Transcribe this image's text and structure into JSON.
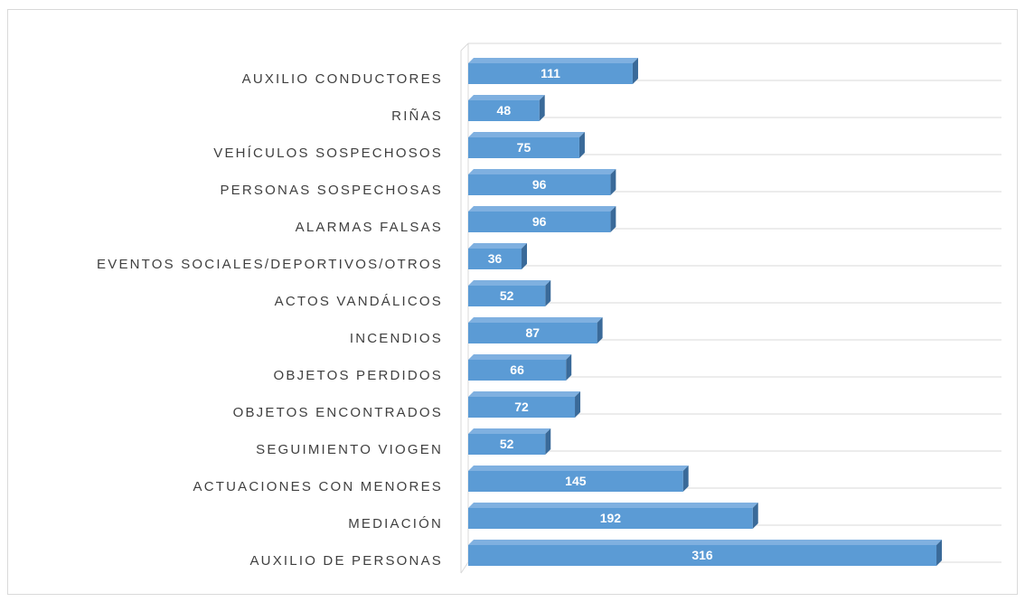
{
  "chart_data": {
    "type": "bar3d",
    "categories": [
      "AUXILIO CONDUCTORES",
      "RIÑAS",
      "VEHÍCULOS SOSPECHOSOS",
      "PERSONAS SOSPECHOSAS",
      "ALARMAS FALSAS",
      "EVENTOS SOCIALES/DEPORTIVOS/OTROS",
      "ACTOS VANDÁLICOS",
      "INCENDIOS",
      "OBJETOS PERDIDOS",
      "OBJETOS ENCONTRADOS",
      "SEGUIMIENTO VIOGEN",
      "ACTUACIONES CON MENORES",
      "MEDIACIÓN",
      "AUXILIO DE PERSONAS"
    ],
    "values": [
      111,
      48,
      75,
      96,
      96,
      36,
      52,
      87,
      66,
      72,
      52,
      145,
      192,
      316
    ],
    "color": "#5b9bd5",
    "grid": true
  }
}
